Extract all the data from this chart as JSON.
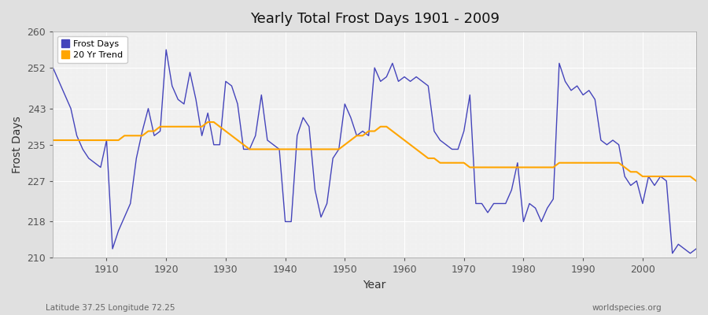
{
  "title": "Yearly Total Frost Days 1901 - 2009",
  "xlabel": "Year",
  "ylabel": "Frost Days",
  "subtitle_left": "Latitude 37.25 Longitude 72.25",
  "subtitle_right": "worldspecies.org",
  "legend_labels": [
    "Frost Days",
    "20 Yr Trend"
  ],
  "line_color_frost": "#4444bb",
  "line_color_trend": "#FFA500",
  "fig_bg_color": "#e0e0e0",
  "plot_bg_color": "#f0f0f0",
  "ylim": [
    210,
    260
  ],
  "xlim": [
    1901,
    2009
  ],
  "yticks": [
    210,
    218,
    227,
    235,
    243,
    252,
    260
  ],
  "xticks": [
    1910,
    1920,
    1930,
    1940,
    1950,
    1960,
    1970,
    1980,
    1990,
    2000
  ],
  "years": [
    1901,
    1902,
    1903,
    1904,
    1905,
    1906,
    1907,
    1908,
    1909,
    1910,
    1911,
    1912,
    1913,
    1914,
    1915,
    1916,
    1917,
    1918,
    1919,
    1920,
    1921,
    1922,
    1923,
    1924,
    1925,
    1926,
    1927,
    1928,
    1929,
    1930,
    1931,
    1932,
    1933,
    1934,
    1935,
    1936,
    1937,
    1938,
    1939,
    1940,
    1941,
    1942,
    1943,
    1944,
    1945,
    1946,
    1947,
    1948,
    1949,
    1950,
    1951,
    1952,
    1953,
    1954,
    1955,
    1956,
    1957,
    1958,
    1959,
    1960,
    1961,
    1962,
    1963,
    1964,
    1965,
    1966,
    1967,
    1968,
    1969,
    1970,
    1971,
    1972,
    1973,
    1974,
    1975,
    1976,
    1977,
    1978,
    1979,
    1980,
    1981,
    1982,
    1983,
    1984,
    1985,
    1986,
    1987,
    1988,
    1989,
    1990,
    1991,
    1992,
    1993,
    1994,
    1995,
    1996,
    1997,
    1998,
    1999,
    2000,
    2001,
    2002,
    2003,
    2004,
    2005,
    2006,
    2007,
    2008,
    2009
  ],
  "frost_days": [
    252,
    249,
    246,
    243,
    237,
    234,
    232,
    231,
    230,
    236,
    212,
    216,
    219,
    222,
    232,
    238,
    243,
    237,
    238,
    256,
    248,
    245,
    244,
    251,
    245,
    237,
    242,
    235,
    235,
    249,
    248,
    244,
    234,
    234,
    237,
    246,
    236,
    235,
    234,
    218,
    218,
    237,
    241,
    239,
    225,
    219,
    222,
    232,
    234,
    244,
    241,
    237,
    238,
    237,
    252,
    249,
    250,
    253,
    249,
    250,
    249,
    250,
    249,
    248,
    238,
    236,
    235,
    234,
    234,
    238,
    246,
    222,
    222,
    220,
    222,
    222,
    222,
    225,
    231,
    218,
    222,
    221,
    218,
    221,
    223,
    253,
    249,
    247,
    248,
    246,
    247,
    245,
    236,
    235,
    236,
    235,
    228,
    226,
    227,
    222,
    228,
    226,
    228,
    227,
    211,
    213,
    212,
    211,
    212
  ],
  "trend_years": [
    1901,
    1902,
    1903,
    1904,
    1905,
    1906,
    1907,
    1908,
    1909,
    1910,
    1911,
    1912,
    1913,
    1914,
    1915,
    1916,
    1917,
    1918,
    1919,
    1920,
    1921,
    1922,
    1923,
    1924,
    1925,
    1926,
    1927,
    1928,
    1929,
    1930,
    1931,
    1932,
    1933,
    1934,
    1935,
    1936,
    1937,
    1938,
    1939,
    1940,
    1941,
    1942,
    1943,
    1944,
    1945,
    1946,
    1947,
    1948,
    1949,
    1950,
    1951,
    1952,
    1953,
    1954,
    1955,
    1956,
    1957,
    1958,
    1959,
    1960,
    1961,
    1962,
    1963,
    1964,
    1965,
    1966,
    1967,
    1968,
    1969,
    1970,
    1971,
    1972,
    1973,
    1974,
    1975,
    1976,
    1977,
    1978,
    1979,
    1980,
    1981,
    1982,
    1983,
    1984,
    1985,
    1986,
    1987,
    1988,
    1989,
    1990,
    1991,
    1992,
    1993,
    1994,
    1995,
    1996,
    1997,
    1998,
    1999,
    2000,
    2001,
    2002,
    2003,
    2004,
    2005,
    2006,
    2007,
    2008,
    2009
  ],
  "trend_values": [
    236,
    236,
    236,
    236,
    236,
    236,
    236,
    236,
    236,
    236,
    236,
    236,
    237,
    237,
    237,
    237,
    238,
    238,
    239,
    239,
    239,
    239,
    239,
    239,
    239,
    239,
    240,
    240,
    239,
    238,
    237,
    236,
    235,
    234,
    234,
    234,
    234,
    234,
    234,
    234,
    234,
    234,
    234,
    234,
    234,
    234,
    234,
    234,
    234,
    235,
    236,
    237,
    237,
    238,
    238,
    239,
    239,
    238,
    237,
    236,
    235,
    234,
    233,
    232,
    232,
    231,
    231,
    231,
    231,
    231,
    230,
    230,
    230,
    230,
    230,
    230,
    230,
    230,
    230,
    230,
    230,
    230,
    230,
    230,
    230,
    231,
    231,
    231,
    231,
    231,
    231,
    231,
    231,
    231,
    231,
    231,
    230,
    229,
    229,
    228,
    228,
    228,
    228,
    228,
    228,
    228,
    228,
    228,
    227
  ]
}
